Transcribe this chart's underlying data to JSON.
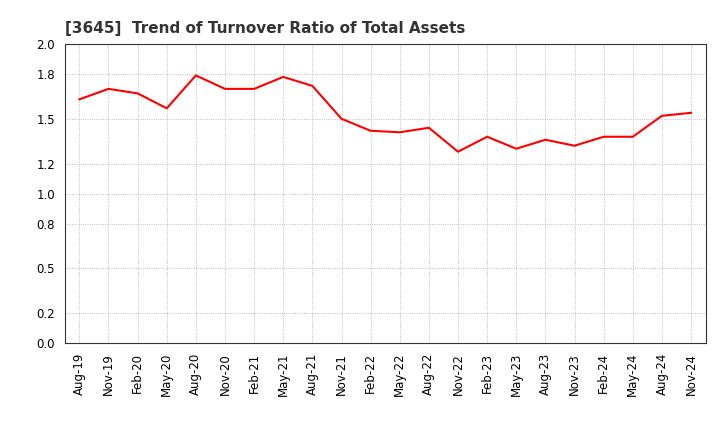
{
  "title": "[3645]  Trend of Turnover Ratio of Total Assets",
  "line_color": "#FF0000",
  "line_width": 1.5,
  "background_color": "#FFFFFF",
  "grid_color": "#AAAAAA",
  "ylim": [
    0.0,
    2.0
  ],
  "yticks": [
    0.0,
    0.2,
    0.5,
    0.8,
    1.0,
    1.2,
    1.5,
    1.8,
    2.0
  ],
  "x_labels": [
    "Aug-19",
    "Nov-19",
    "Feb-20",
    "May-20",
    "Aug-20",
    "Nov-20",
    "Feb-21",
    "May-21",
    "Aug-21",
    "Nov-21",
    "Feb-22",
    "May-22",
    "Aug-22",
    "Nov-22",
    "Feb-23",
    "May-23",
    "Aug-23",
    "Nov-23",
    "Feb-24",
    "May-24",
    "Aug-24",
    "Nov-24"
  ],
  "values": [
    1.63,
    1.7,
    1.67,
    1.57,
    1.79,
    1.7,
    1.7,
    1.78,
    1.72,
    1.5,
    1.42,
    1.41,
    1.44,
    1.28,
    1.38,
    1.3,
    1.36,
    1.32,
    1.38,
    1.38,
    1.52,
    1.54
  ],
  "title_fontsize": 11,
  "tick_fontsize": 8.5,
  "ytick_fontsize": 8.5
}
